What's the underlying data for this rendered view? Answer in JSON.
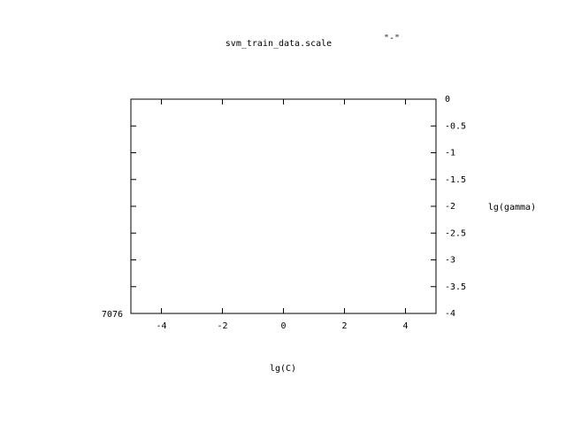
{
  "chart_data": {
    "type": "contour",
    "title": "svm_train_data.scale",
    "x_label": "lg(C)",
    "y_label": "lg(gamma)",
    "series": [
      {
        "name": "\"-\""
      }
    ],
    "annotation": "7076",
    "xlim": [
      -5,
      5
    ],
    "xticks": [
      -4,
      -2,
      0,
      2,
      4
    ],
    "ylim": [
      -4,
      0
    ],
    "yticks": [
      0,
      -0.5,
      -1,
      -1.5,
      -2,
      -2.5,
      -3,
      -3.5,
      -4
    ],
    "y_axis_side": "right",
    "grid": false
  }
}
